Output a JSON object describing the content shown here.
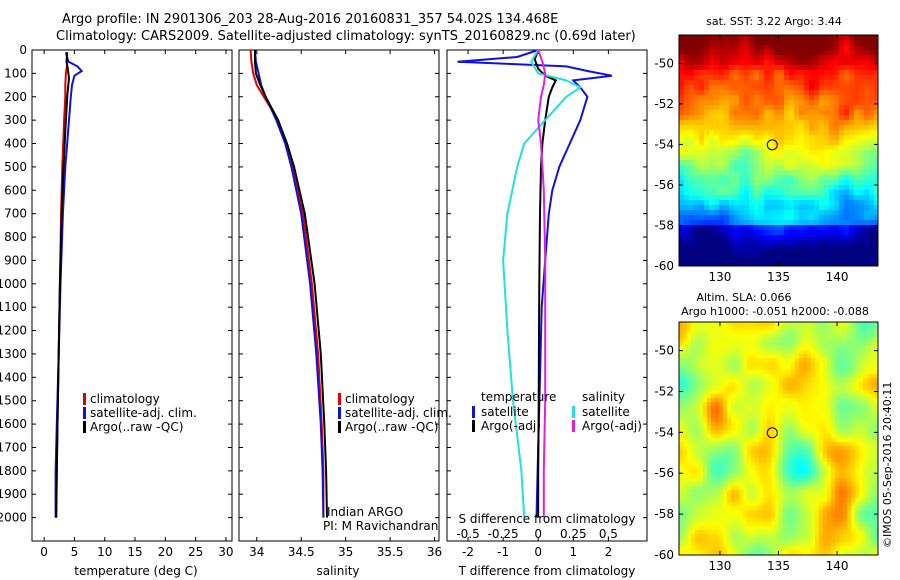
{
  "header": {
    "title_line1": "Argo profile: IN 2901306_203 28-Aug-2016 20160831_357 54.02S 134.468E",
    "title_line2": "Climatology: CARS2009. Satellite-adjusted climatology: synTS_20160829.nc (0.69d later)"
  },
  "colors": {
    "climatology": "#e00000",
    "satellite": "#1010e0",
    "argo": "#000000",
    "salinity_satellite": "#20e0e0",
    "salinity_argo": "#e020e0"
  },
  "chart_data": [
    {
      "type": "line",
      "id": "temperature",
      "xlabel": "temperature (deg C)",
      "xticks": [
        0,
        5,
        10,
        15,
        20,
        25,
        30
      ],
      "xlim": [
        -2,
        31
      ],
      "ylim": [
        2100,
        0
      ],
      "yticks": [
        0,
        100,
        200,
        300,
        400,
        500,
        600,
        700,
        800,
        900,
        1000,
        1100,
        1200,
        1300,
        1400,
        1500,
        1600,
        1700,
        1800,
        1900,
        2000
      ],
      "legend": [
        "climatology",
        "satellite-adj. clim.",
        "Argo(..raw -QC)"
      ],
      "series": [
        {
          "name": "climatology",
          "y": [
            60,
            100,
            150,
            200,
            300,
            500,
            700,
            1000,
            1300,
            1600,
            1800,
            2000
          ],
          "x": [
            3.8,
            3.6,
            3.5,
            3.5,
            3.3,
            3.0,
            2.8,
            2.6,
            2.4,
            2.2,
            2.1,
            2.0
          ]
        },
        {
          "name": "satellite-adj. clim.",
          "y": [
            10,
            50,
            70,
            90,
            110,
            150,
            200,
            300,
            400,
            500,
            700,
            1000,
            1300,
            1600,
            1800,
            2000
          ],
          "x": [
            3.6,
            4.0,
            5.5,
            6.2,
            5.0,
            4.6,
            4.4,
            4.1,
            3.8,
            3.5,
            3.1,
            2.7,
            2.4,
            2.1,
            1.9,
            1.9
          ]
        },
        {
          "name": "Argo(..raw -QC)",
          "y": [
            10,
            50,
            80,
            120,
            200,
            300,
            500,
            700,
            1000,
            1300,
            1600,
            1800,
            2000
          ],
          "x": [
            3.8,
            3.7,
            3.9,
            4.1,
            3.8,
            3.6,
            3.2,
            2.9,
            2.6,
            2.4,
            2.2,
            2.1,
            2.0
          ]
        }
      ]
    },
    {
      "type": "line",
      "id": "salinity",
      "xlabel": "salinity",
      "xticks": [
        34,
        34.5,
        35,
        35.5,
        36
      ],
      "xlim": [
        33.8,
        36.05
      ],
      "ylim": [
        2100,
        0
      ],
      "legend": [
        "climatology",
        "satellite-adj. clim.",
        "Argo(..raw -QC)"
      ],
      "annotation": [
        "Indian ARGO",
        "PI: M Ravichandran"
      ],
      "series": [
        {
          "name": "climatology",
          "y": [
            0,
            50,
            100,
            150,
            200,
            250,
            300,
            400,
            500,
            700,
            1000,
            1300,
            1600,
            1800,
            2000
          ],
          "x": [
            33.93,
            33.94,
            33.96,
            34.0,
            34.08,
            34.16,
            34.23,
            34.33,
            34.41,
            34.52,
            34.62,
            34.69,
            34.73,
            34.75,
            34.75
          ]
        },
        {
          "name": "satellite-adj. clim.",
          "y": [
            0,
            50,
            100,
            150,
            200,
            250,
            300,
            400,
            500,
            700,
            1000,
            1300,
            1600,
            1800,
            2000
          ],
          "x": [
            33.98,
            33.99,
            34.02,
            34.05,
            34.1,
            34.16,
            34.22,
            34.32,
            34.39,
            34.5,
            34.6,
            34.67,
            34.72,
            34.74,
            34.75
          ]
        },
        {
          "name": "Argo(..raw -QC)",
          "y": [
            0,
            50,
            100,
            150,
            200,
            250,
            300,
            400,
            500,
            700,
            1000,
            1300,
            1600,
            1800,
            2000
          ],
          "x": [
            33.98,
            33.98,
            33.99,
            34.04,
            34.1,
            34.17,
            34.24,
            34.34,
            34.42,
            34.54,
            34.65,
            34.72,
            34.76,
            34.78,
            34.79
          ]
        }
      ]
    },
    {
      "type": "line",
      "id": "difference",
      "xlabel": "T difference from climatology",
      "xlabel_top": "S difference from climatology",
      "xticks": [
        -2,
        -1,
        0,
        1,
        2
      ],
      "xticks_s": [
        -0.5,
        -0.25,
        0,
        0.25,
        0.5
      ],
      "xlim": [
        -2.6,
        3.1
      ],
      "ylim": [
        2100,
        0
      ],
      "legend_temperature": [
        "temperature",
        "satellite",
        "Argo(-adj)"
      ],
      "legend_salinity": [
        "salinity",
        "satellite",
        "Argo(-adj)"
      ],
      "series": [
        {
          "name": "temperature satellite",
          "y": [
            0,
            30,
            50,
            70,
            90,
            110,
            130,
            160,
            200,
            300,
            400,
            500,
            600,
            700,
            900,
            1100,
            1400,
            1700,
            2000
          ],
          "x": [
            0.0,
            -0.6,
            -2.3,
            0.8,
            1.4,
            2.1,
            1.0,
            1.2,
            1.4,
            1.2,
            0.9,
            0.6,
            0.4,
            0.3,
            0.2,
            0.1,
            0.05,
            0.0,
            -0.05
          ]
        },
        {
          "name": "temperature Argo(-adj)",
          "y": [
            0,
            40,
            80,
            110,
            130,
            160,
            200,
            300,
            400,
            500,
            700,
            1000,
            1300,
            1600,
            1800,
            2000
          ],
          "x": [
            0.0,
            -0.1,
            0.0,
            0.2,
            0.5,
            0.4,
            0.3,
            0.2,
            0.12,
            0.08,
            0.05,
            0.03,
            0.02,
            0.01,
            0.0,
            0.0
          ]
        },
        {
          "name": "salinity satellite",
          "y": [
            0,
            50,
            100,
            130,
            160,
            200,
            300,
            400,
            500,
            700,
            900,
            1200,
            1500,
            1800,
            2000
          ],
          "x": [
            0.0,
            -0.05,
            0.0,
            0.2,
            0.3,
            0.2,
            0.05,
            -0.1,
            -0.15,
            -0.22,
            -0.25,
            -0.22,
            -0.18,
            -0.12,
            -0.1
          ]
        },
        {
          "name": "salinity Argo(-adj)",
          "y": [
            0,
            50,
            100,
            150,
            200,
            300,
            400,
            600,
            900,
            1200,
            1500,
            1800,
            2000
          ],
          "x": [
            0.0,
            0.03,
            0.05,
            0.04,
            0.02,
            0.0,
            0.02,
            0.04,
            0.05,
            0.05,
            0.05,
            0.04,
            0.04
          ]
        }
      ]
    },
    {
      "type": "heatmap",
      "id": "sst-map",
      "title": "sat. SST: 3.22  Argo: 3.44",
      "xticks": [
        130,
        135,
        140
      ],
      "yticks": [
        -50,
        -52,
        -54,
        -56,
        -58,
        -60
      ],
      "xlim": [
        126.5,
        143.5
      ],
      "ylim": [
        -60,
        -48.6
      ],
      "marker": {
        "lon": 134.468,
        "lat": -54.02
      }
    },
    {
      "type": "heatmap",
      "id": "sla-map",
      "title": "Altim. SLA: 0.066",
      "subtitle": "Argo h1000: -0.051 h2000: -0.088",
      "xticks": [
        130,
        135,
        140
      ],
      "yticks": [
        -50,
        -52,
        -54,
        -56,
        -58,
        -60
      ],
      "xlim": [
        126.5,
        143.5
      ],
      "ylim": [
        -60,
        -48.6
      ],
      "marker": {
        "lon": 134.468,
        "lat": -54.02
      }
    }
  ],
  "credit": "©IMOS 05-Sep-2016 20:40:11"
}
